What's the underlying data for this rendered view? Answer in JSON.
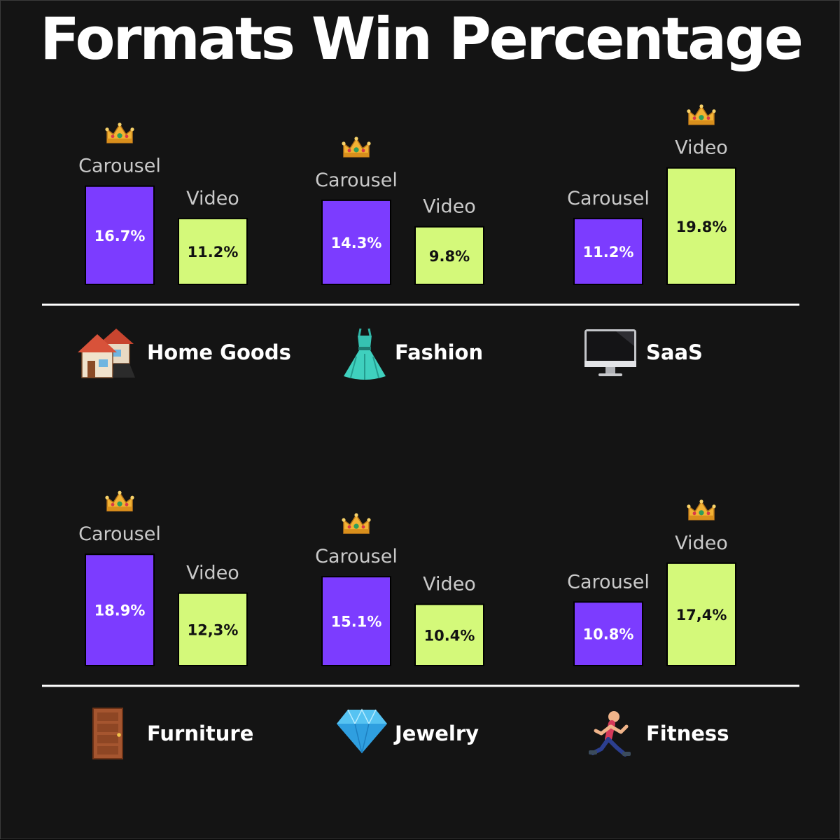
{
  "title": "Formats Win Percentage",
  "colors": {
    "background": "#141414",
    "carousel": "#7c3cff",
    "video": "#d4f97a",
    "carousel_label": "#ffffff",
    "video_label": "#111111",
    "baseline": "#ffffff"
  },
  "chart_data": [
    {
      "type": "bar",
      "category": "Home Goods",
      "icon": "houses-icon",
      "categories": [
        "Carousel",
        "Video"
      ],
      "values": [
        16.7,
        11.2
      ],
      "value_labels": [
        "16.7%",
        "11.2%"
      ],
      "winner": "Carousel",
      "winner_icon": "crown-icon"
    },
    {
      "type": "bar",
      "category": "Fashion",
      "icon": "dress-icon",
      "categories": [
        "Carousel",
        "Video"
      ],
      "values": [
        14.3,
        9.8
      ],
      "value_labels": [
        "14.3%",
        "9.8%"
      ],
      "winner": "Carousel",
      "winner_icon": "crown-icon"
    },
    {
      "type": "bar",
      "category": "SaaS",
      "icon": "desktop-computer-icon",
      "categories": [
        "Carousel",
        "Video"
      ],
      "values": [
        11.2,
        19.8
      ],
      "value_labels": [
        "11.2%",
        "19.8%"
      ],
      "winner": "Video",
      "winner_icon": "crown-icon"
    },
    {
      "type": "bar",
      "category": "Furniture",
      "icon": "door-icon",
      "categories": [
        "Carousel",
        "Video"
      ],
      "values": [
        18.9,
        12.3
      ],
      "value_labels": [
        "18.9%",
        "12,3%"
      ],
      "winner": "Carousel",
      "winner_icon": "crown-icon"
    },
    {
      "type": "bar",
      "category": "Jewelry",
      "icon": "gem-icon",
      "categories": [
        "Carousel",
        "Video"
      ],
      "values": [
        15.1,
        10.4
      ],
      "value_labels": [
        "15.1%",
        "10.4%"
      ],
      "winner": "Carousel",
      "winner_icon": "crown-icon"
    },
    {
      "type": "bar",
      "category": "Fitness",
      "icon": "runner-icon",
      "categories": [
        "Carousel",
        "Video"
      ],
      "values": [
        10.8,
        17.4
      ],
      "value_labels": [
        "10.8%",
        "17,4%"
      ],
      "winner": "Video",
      "winner_icon": "crown-icon"
    }
  ]
}
